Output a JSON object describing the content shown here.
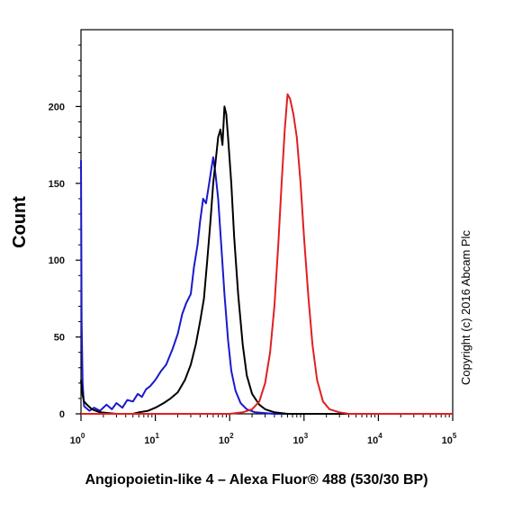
{
  "chart_data": {
    "type": "line",
    "xlabel": "Angiopoietin-like 4 – Alexa Fluor® 488 (530/30 BP)",
    "ylabel": "Count",
    "x_scale": "log",
    "xlim": [
      1,
      100000
    ],
    "ylim": [
      0,
      250
    ],
    "x_ticks": [
      {
        "base": "10",
        "exp": "0",
        "value": 1
      },
      {
        "base": "10",
        "exp": "1",
        "value": 10
      },
      {
        "base": "10",
        "exp": "2",
        "value": 100
      },
      {
        "base": "10",
        "exp": "3",
        "value": 1000
      },
      {
        "base": "10",
        "exp": "4",
        "value": 10000
      },
      {
        "base": "10",
        "exp": "5",
        "value": 100000
      }
    ],
    "y_ticks": [
      0,
      50,
      100,
      150,
      200
    ],
    "grid": false,
    "series": [
      {
        "color": "#1a1acc",
        "points": [
          [
            1.0,
            165
          ],
          [
            1.02,
            60
          ],
          [
            1.05,
            20
          ],
          [
            1.1,
            5
          ],
          [
            1.3,
            2
          ],
          [
            1.5,
            4
          ],
          [
            1.8,
            2
          ],
          [
            2.2,
            6
          ],
          [
            2.6,
            3
          ],
          [
            3.0,
            7
          ],
          [
            3.6,
            4
          ],
          [
            4.2,
            9
          ],
          [
            5.0,
            8
          ],
          [
            5.8,
            13
          ],
          [
            6.6,
            11
          ],
          [
            7.5,
            16
          ],
          [
            8.5,
            18
          ],
          [
            10,
            22
          ],
          [
            12,
            28
          ],
          [
            14,
            32
          ],
          [
            17,
            42
          ],
          [
            20,
            52
          ],
          [
            23,
            65
          ],
          [
            26,
            72
          ],
          [
            30,
            78
          ],
          [
            33,
            95
          ],
          [
            37,
            110
          ],
          [
            40,
            125
          ],
          [
            44,
            140
          ],
          [
            48,
            137
          ],
          [
            53,
            150
          ],
          [
            57,
            160
          ],
          [
            60,
            167
          ],
          [
            65,
            155
          ],
          [
            70,
            140
          ],
          [
            77,
            110
          ],
          [
            85,
            78
          ],
          [
            95,
            48
          ],
          [
            105,
            28
          ],
          [
            120,
            15
          ],
          [
            140,
            7
          ],
          [
            170,
            3
          ],
          [
            220,
            1
          ],
          [
            400,
            0
          ],
          [
            100000,
            0
          ]
        ]
      },
      {
        "color": "#000000",
        "points": [
          [
            1.0,
            22
          ],
          [
            1.05,
            12
          ],
          [
            1.1,
            8
          ],
          [
            1.2,
            6
          ],
          [
            1.4,
            3
          ],
          [
            1.8,
            1
          ],
          [
            3,
            0
          ],
          [
            5,
            0
          ],
          [
            6,
            1
          ],
          [
            8,
            2
          ],
          [
            10,
            4
          ],
          [
            13,
            7
          ],
          [
            16,
            10
          ],
          [
            20,
            14
          ],
          [
            25,
            22
          ],
          [
            30,
            32
          ],
          [
            35,
            45
          ],
          [
            40,
            60
          ],
          [
            45,
            75
          ],
          [
            50,
            100
          ],
          [
            55,
            125
          ],
          [
            60,
            150
          ],
          [
            65,
            165
          ],
          [
            70,
            180
          ],
          [
            75,
            185
          ],
          [
            80,
            175
          ],
          [
            85,
            200
          ],
          [
            90,
            195
          ],
          [
            95,
            180
          ],
          [
            105,
            150
          ],
          [
            115,
            115
          ],
          [
            130,
            78
          ],
          [
            150,
            45
          ],
          [
            170,
            25
          ],
          [
            200,
            13
          ],
          [
            250,
            6
          ],
          [
            300,
            3
          ],
          [
            400,
            1
          ],
          [
            600,
            0
          ],
          [
            100000,
            0
          ]
        ]
      },
      {
        "color": "#e02020",
        "points": [
          [
            1,
            0
          ],
          [
            50,
            0
          ],
          [
            100,
            0
          ],
          [
            150,
            1
          ],
          [
            200,
            3
          ],
          [
            250,
            8
          ],
          [
            300,
            20
          ],
          [
            350,
            40
          ],
          [
            400,
            70
          ],
          [
            450,
            110
          ],
          [
            500,
            150
          ],
          [
            550,
            185
          ],
          [
            600,
            208
          ],
          [
            650,
            205
          ],
          [
            720,
            195
          ],
          [
            800,
            180
          ],
          [
            900,
            150
          ],
          [
            1000,
            115
          ],
          [
            1150,
            75
          ],
          [
            1300,
            45
          ],
          [
            1500,
            22
          ],
          [
            1800,
            8
          ],
          [
            2200,
            3
          ],
          [
            3000,
            1
          ],
          [
            4000,
            0
          ],
          [
            100000,
            0
          ]
        ]
      }
    ]
  },
  "copyright": "Copyright (c) 2016 Abcam Plc"
}
